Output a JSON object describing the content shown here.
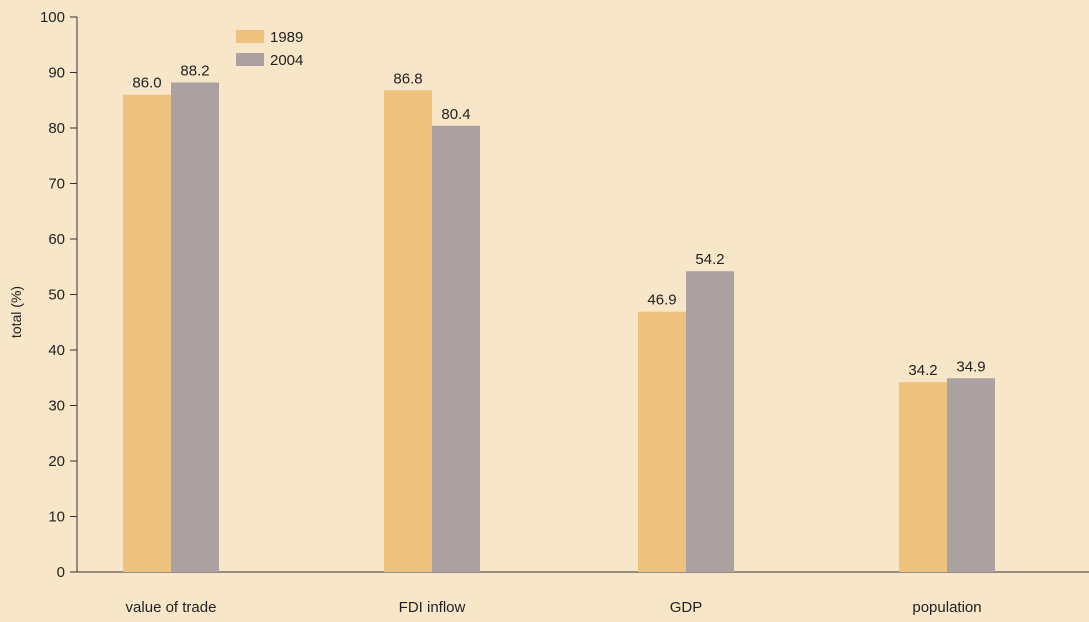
{
  "chart_data": {
    "type": "bar",
    "categories": [
      "value of trade",
      "FDI inflow",
      "GDP",
      "population"
    ],
    "series": [
      {
        "name": "1989",
        "values": [
          86.0,
          86.8,
          46.9,
          34.2
        ],
        "color": "#edc27e"
      },
      {
        "name": "2004",
        "values": [
          88.2,
          80.4,
          54.2,
          34.9
        ],
        "color": "#aaa1a0"
      }
    ],
    "ylabel": "total (%)",
    "xlabel": "",
    "ylim": [
      0,
      100
    ],
    "yticks": [
      0,
      10,
      20,
      30,
      40,
      50,
      60,
      70,
      80,
      90,
      100
    ],
    "grid": false,
    "legend_position": "top-left",
    "background_color": "#f8e6c8"
  }
}
